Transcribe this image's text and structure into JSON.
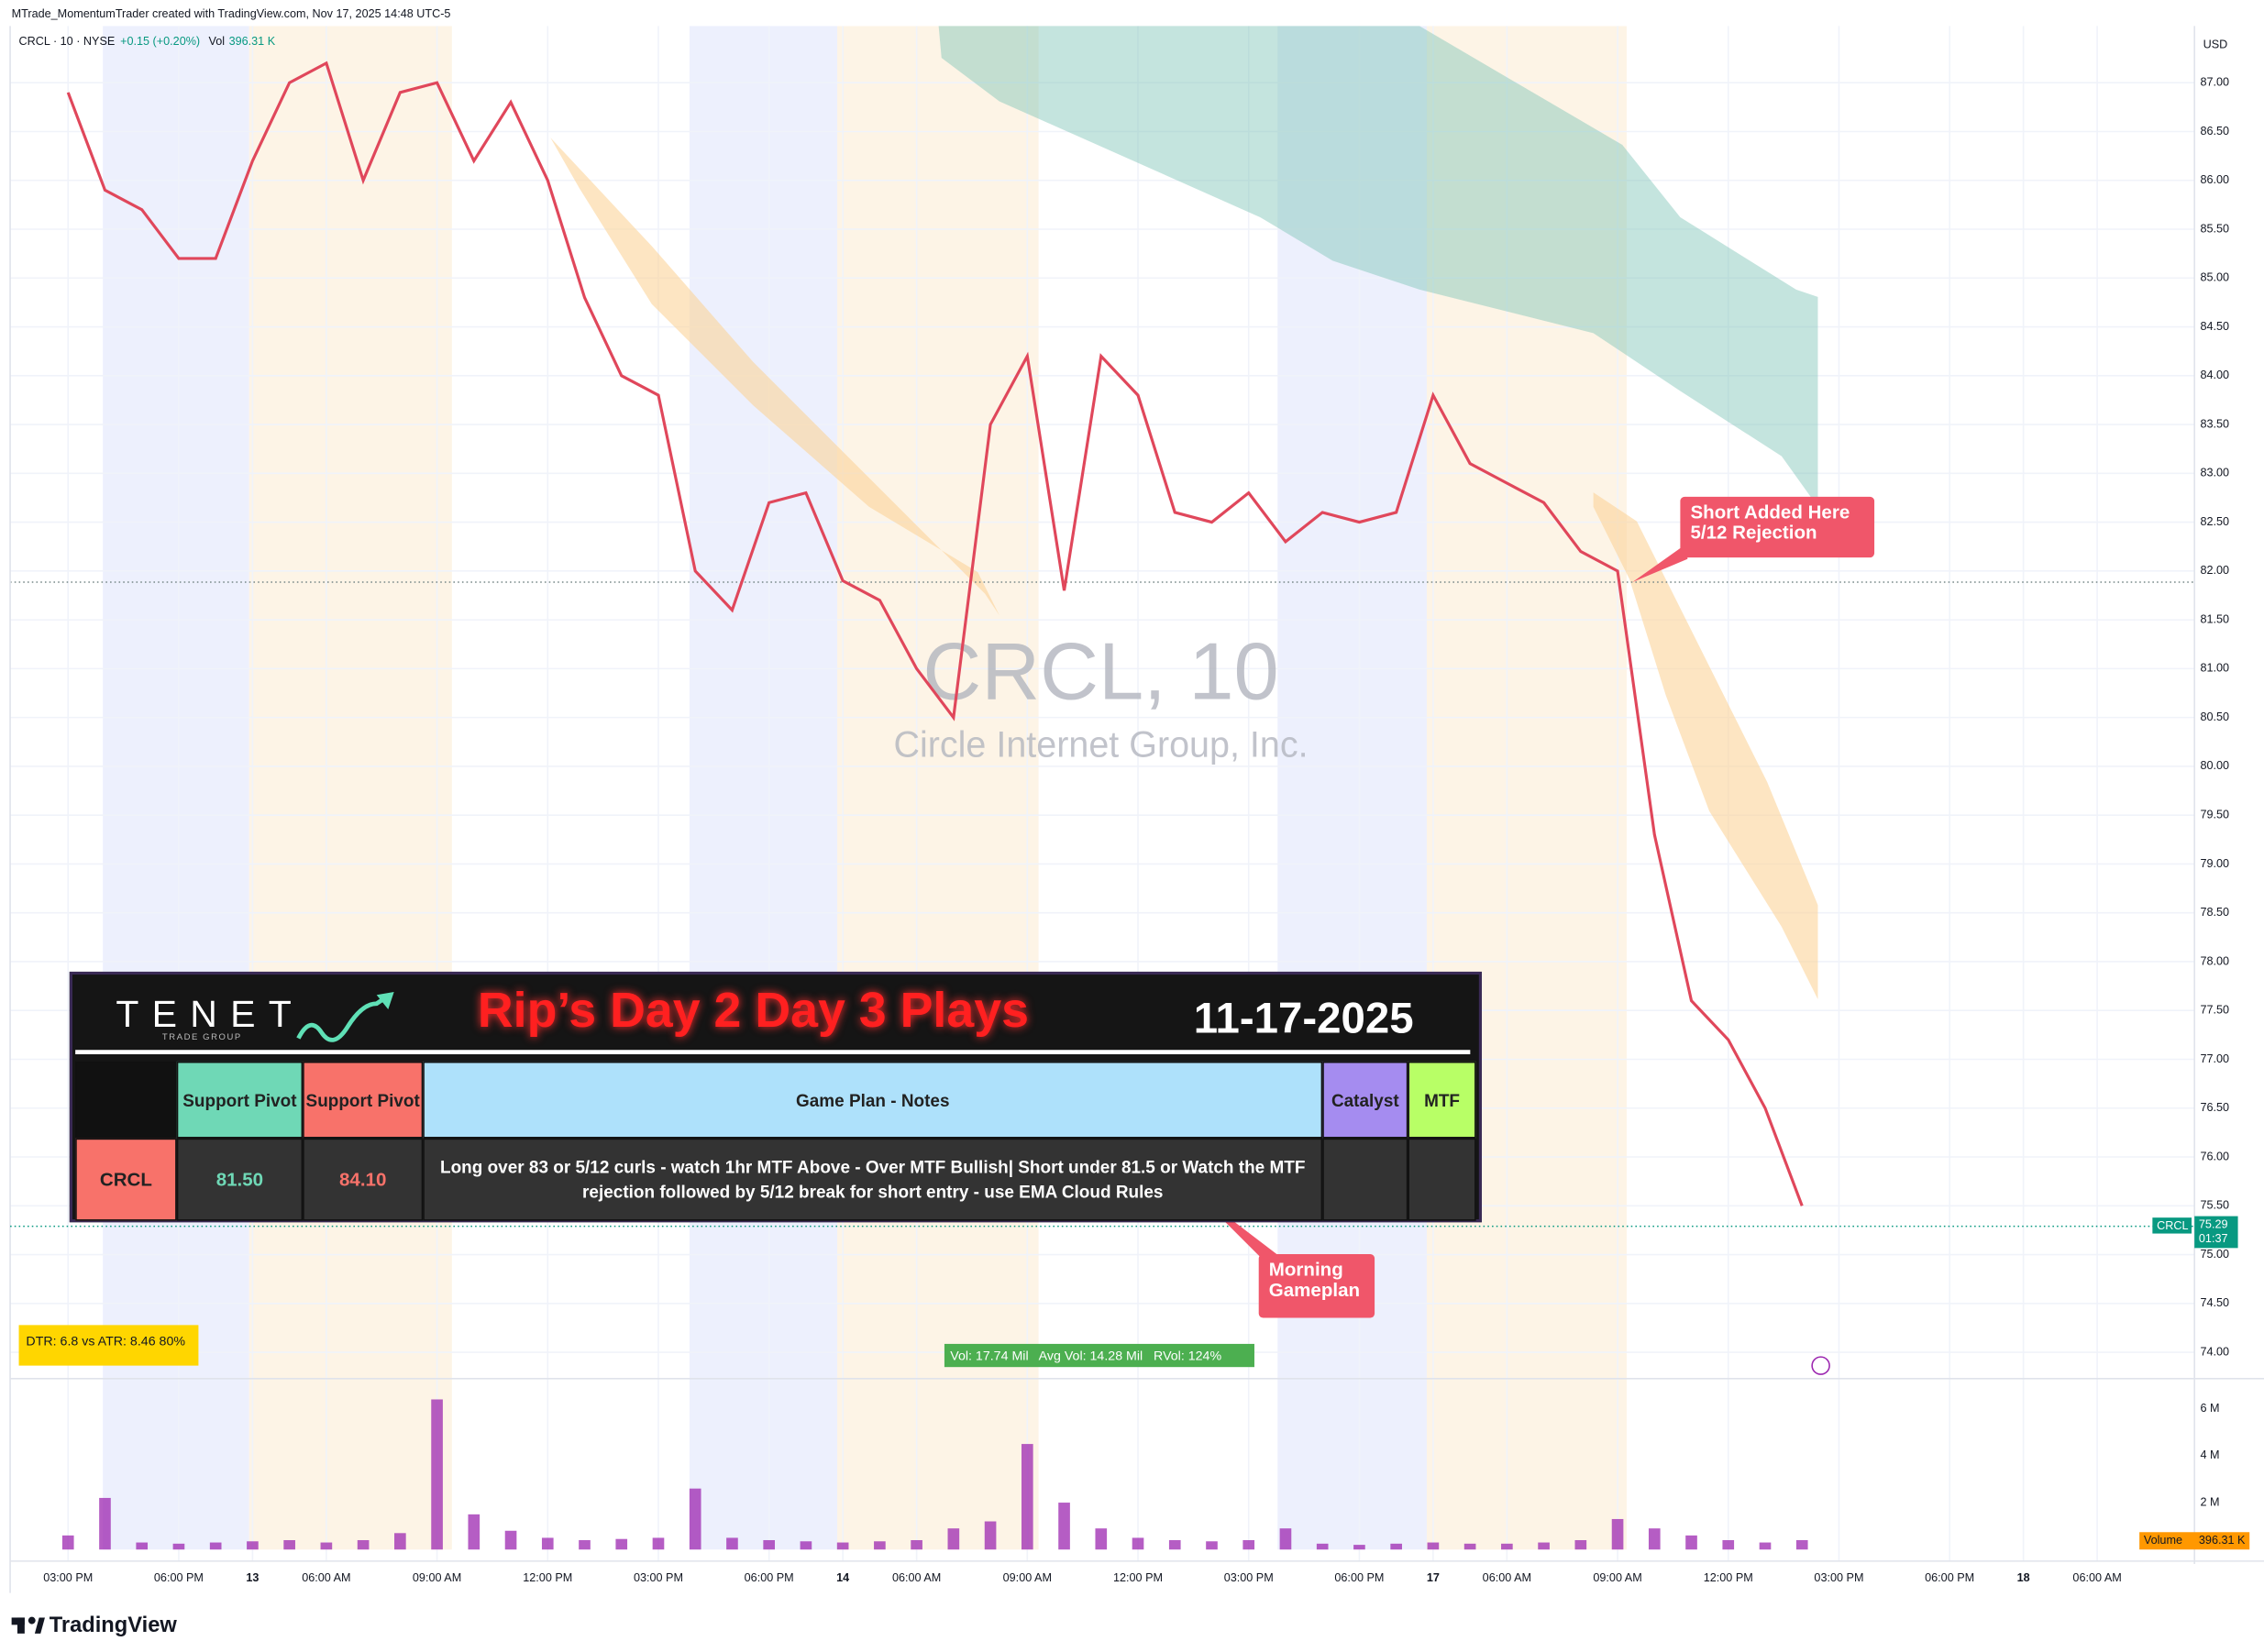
{
  "header": {
    "credit": "MTrade_MomentumTrader created with TradingView.com, Nov 17, 2025 14:48 UTC-5"
  },
  "legend": {
    "symbol": "CRCL · 10 · NYSE",
    "change": "+0.15 (+0.20%)",
    "volume_label": "Vol",
    "volume": "396.31 K",
    "currency": "USD"
  },
  "watermark": {
    "title": "CRCL, 10",
    "subtitle": "Circle Internet Group, Inc."
  },
  "chart_data": [
    {
      "type": "line",
      "color": "#e0475b",
      "grid": true,
      "categories": [
        "03:00 PM",
        null,
        null,
        "06:00 PM",
        null,
        "13",
        null,
        "06:00 AM",
        null,
        null,
        "09:00 AM",
        null,
        null,
        "12:00 PM",
        null,
        null,
        "03:00 PM",
        null,
        null,
        "06:00 PM",
        null,
        "14",
        null,
        "06:00 AM",
        null,
        null,
        "09:00 AM",
        null,
        null,
        "12:00 PM",
        null,
        null,
        "03:00 PM",
        null,
        null,
        "06:00 PM",
        null,
        "17",
        null,
        "06:00 AM",
        null,
        null,
        "09:00 AM",
        null,
        null,
        "12:00 PM",
        null,
        null,
        "03:00 PM",
        null,
        null,
        "06:00 PM",
        null,
        "18",
        null,
        "06:00 AM",
        null
      ],
      "values": [
        86.9,
        85.9,
        85.7,
        85.2,
        85.2,
        86.2,
        87.0,
        87.2,
        86.0,
        86.9,
        87.0,
        86.2,
        86.8,
        86.0,
        84.8,
        84.0,
        83.8,
        82.0,
        81.6,
        82.7,
        82.8,
        81.9,
        81.7,
        81.0,
        80.5,
        83.5,
        84.2,
        81.8,
        84.2,
        83.8,
        82.6,
        82.5,
        82.8,
        82.3,
        82.6,
        82.5,
        82.6,
        83.8,
        83.1,
        82.9,
        82.7,
        82.2,
        82.0,
        79.3,
        77.6,
        77.2,
        76.5,
        75.5,
        null,
        null,
        null,
        null,
        null,
        null,
        null,
        null,
        null
      ],
      "ylim": [
        73.73,
        87.58
      ],
      "yticks": [
        {
          "value": 74,
          "label": "74.00"
        },
        {
          "value": 74.5,
          "label": "74.50"
        },
        {
          "value": 75,
          "label": "75.00"
        },
        {
          "value": 75.5,
          "label": "75.50"
        },
        {
          "value": 76,
          "label": "76.00"
        },
        {
          "value": 76.5,
          "label": "76.50"
        },
        {
          "value": 77,
          "label": "77.00"
        },
        {
          "value": 77.5,
          "label": "77.50"
        },
        {
          "value": 78,
          "label": "78.00"
        },
        {
          "value": 78.5,
          "label": "78.50"
        },
        {
          "value": 79,
          "label": "79.00"
        },
        {
          "value": 79.5,
          "label": "79.50"
        },
        {
          "value": 80,
          "label": "80.00"
        },
        {
          "value": 80.5,
          "label": "80.50"
        },
        {
          "value": 81,
          "label": "81.00"
        },
        {
          "value": 81.5,
          "label": "81.50"
        },
        {
          "value": 82,
          "label": "82.00"
        },
        {
          "value": 82.5,
          "label": "82.50"
        },
        {
          "value": 83,
          "label": "83.00"
        },
        {
          "value": 83.5,
          "label": "83.50"
        },
        {
          "value": 84,
          "label": "84.00"
        },
        {
          "value": 84.5,
          "label": "84.50"
        },
        {
          "value": 85,
          "label": "85.00"
        },
        {
          "value": 85.5,
          "label": "85.50"
        },
        {
          "value": 86,
          "label": "86.00"
        },
        {
          "value": 86.5,
          "label": "86.50"
        },
        {
          "value": 87,
          "label": "87.00"
        }
      ],
      "last_price": {
        "symbol": "CRCL",
        "value": 75.29,
        "countdown": "01:37"
      }
    },
    {
      "type": "bar",
      "color": "#9c27b0",
      "values": [
        600000,
        2200000,
        300000,
        250000,
        300000,
        350000,
        400000,
        300000,
        400000,
        700000,
        6400000,
        1500000,
        800000,
        500000,
        400000,
        450000,
        500000,
        2600000,
        500000,
        400000,
        350000,
        300000,
        350000,
        400000,
        900000,
        1200000,
        4500000,
        2000000,
        900000,
        500000,
        400000,
        350000,
        400000,
        900000,
        250000,
        200000,
        250000,
        300000,
        250000,
        250000,
        300000,
        400000,
        1300000,
        900000,
        600000,
        400000,
        300000,
        400000,
        null,
        null,
        null,
        null,
        null,
        null,
        null,
        null,
        null
      ],
      "ylim": [
        0,
        7100000
      ],
      "yticks": [
        {
          "value": 2000000,
          "label": "2 M"
        },
        {
          "value": 4000000,
          "label": "4 M"
        },
        {
          "value": 6000000,
          "label": "6 M"
        }
      ],
      "tag": {
        "name": "Volume",
        "value": "396.31 K"
      }
    }
  ],
  "annotations": {
    "short": [
      "Short Added Here",
      "5/12 Rejection"
    ],
    "gameplan": [
      "Morning",
      "Gameplan"
    ],
    "dtr": "DTR: 6.8 vs ATR: 8.46 80%",
    "vol_stats": "Vol: 17.74 Mil   Avg Vol: 14.28 Mil   RVol: 124%"
  },
  "gameplan_table": {
    "logo": "TENET",
    "logo_sub": "TRADE GROUP",
    "title": "Rip’s Day 2 Day 3 Plays",
    "date": "11-17-2025",
    "headers": [
      "Support Pivot",
      "Support Pivot",
      "Game Plan - Notes",
      "Catalyst",
      "MTF"
    ],
    "row": {
      "ticker": "CRCL",
      "support_pivot_1": "81.50",
      "support_pivot_2": "84.10",
      "notes": "Long over 83 or 5/12 curls - watch 1hr MTF Above - Over MTF Bullish| Short under 81.5 or Watch the MTF rejection followed by 5/12 break for short entry - use EMA Cloud Rules"
    }
  },
  "footer": {
    "brand": "TradingView"
  }
}
